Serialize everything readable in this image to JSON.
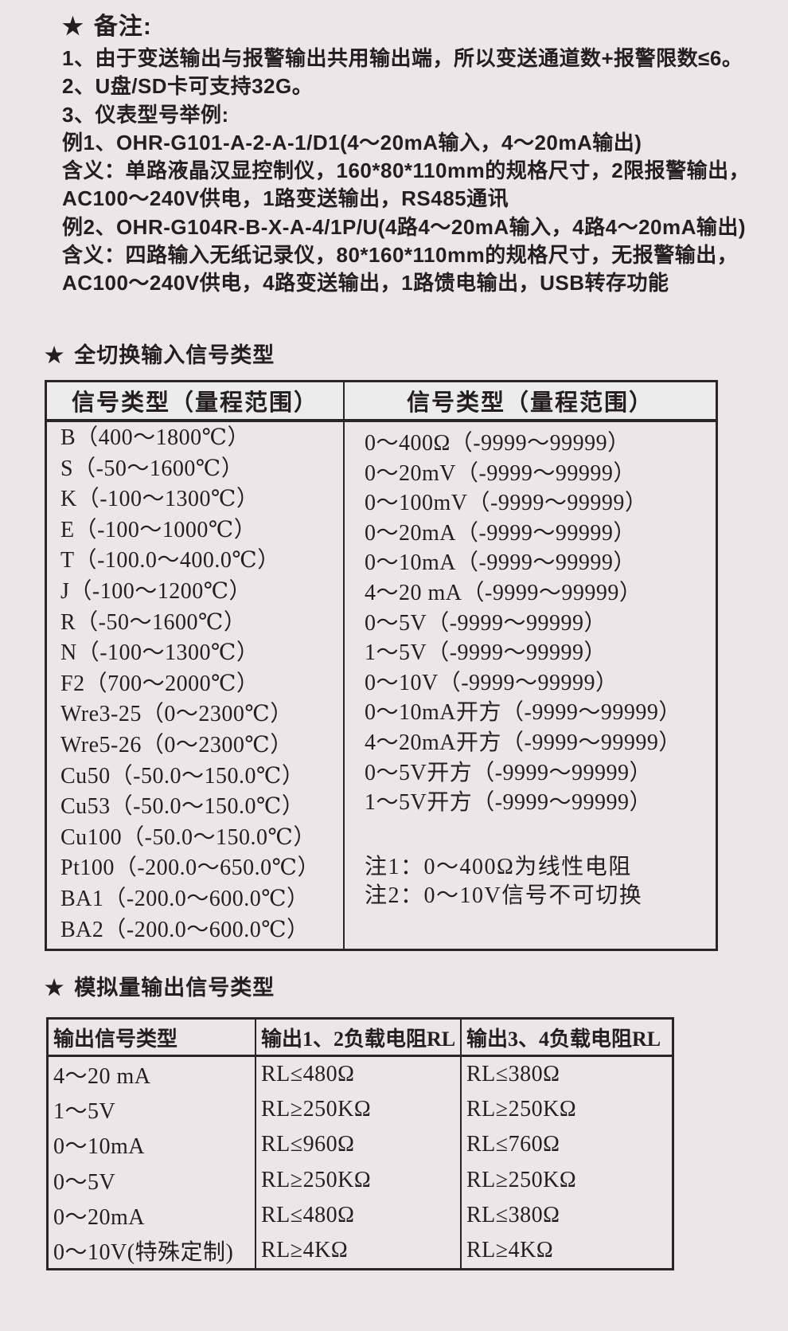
{
  "page": {
    "background_color": "#e9e7e8",
    "text_color": "#231f20",
    "border_color": "#2a2526"
  },
  "remarks": {
    "star": "★",
    "title": "备注:",
    "lines": [
      "1、由于变送输出与报警输出共用输出端，所以变送通道数+报警限数≤6。",
      "2、U盘/SD卡可支持32G。",
      "3、仪表型号举例:",
      "例1、OHR-G101-A-2-A-1/D1(4～20mA输入，4～20mA输出)",
      "含义：单路液晶汉显控制仪，160*80*110mm的规格尺寸，2限报警输出，",
      "AC100～240V供电，1路变送输出，RS485通讯",
      "例2、OHR-G104R-B-X-A-4/1P/U(4路4～20mA输入，4路4～20mA输出)",
      "含义：四路输入无纸记录仪，80*160*110mm的规格尺寸，无报警输出，",
      "AC100～240V供电，4路变送输出，1路馈电输出，USB转存功能"
    ]
  },
  "input_section": {
    "star": "★",
    "title": "全切换输入信号类型",
    "table": {
      "headers": [
        "信号类型（量程范围）",
        "信号类型（量程范围）"
      ],
      "left_rows": [
        "B（400～1800℃）",
        "S（-50～1600℃）",
        "K（-100～1300℃）",
        "E（-100～1000℃）",
        "T（-100.0～400.0℃）",
        "J（-100～1200℃）",
        "R（-50～1600℃）",
        "N（-100～1300℃）",
        "F2（700～2000℃）",
        "Wre3-25（0～2300℃）",
        "Wre5-26（0～2300℃）",
        "Cu50（-50.0～150.0℃）",
        "Cu53（-50.0～150.0℃）",
        "Cu100（-50.0～150.0℃）",
        "Pt100（-200.0～650.0℃）",
        "BA1（-200.0～600.0℃）",
        "BA2（-200.0～600.0℃）"
      ],
      "right_rows": [
        "0～400Ω（-9999～99999）",
        "0～20mV（-9999～99999）",
        "0～100mV（-9999～99999）",
        "0～20mA（-9999～99999）",
        "0～10mA（-9999～99999）",
        "4～20 mA（-9999～99999）",
        "0～5V（-9999～99999）",
        "1～5V（-9999～99999）",
        "0～10V（-9999～99999）",
        "0～10mA开方（-9999～99999）",
        "4～20mA开方（-9999～99999）",
        "0～5V开方（-9999～99999）",
        "1～5V开方（-9999～99999）"
      ],
      "notes": [
        "注1：0～400Ω为线性电阻",
        "注2：0～10V信号不可切换"
      ]
    }
  },
  "output_section": {
    "star": "★",
    "title": "模拟量输出信号类型",
    "table": {
      "headers": [
        "输出信号类型",
        "输出1、2负载电阻RL",
        "输出3、4负载电阻RL"
      ],
      "rows": [
        [
          "4～20 mA",
          "RL≤480Ω",
          "RL≤380Ω"
        ],
        [
          "1～5V",
          "RL≥250KΩ",
          "RL≥250KΩ"
        ],
        [
          "0～10mA",
          "RL≤960Ω",
          "RL≤760Ω"
        ],
        [
          "0～5V",
          "RL≥250KΩ",
          "RL≥250KΩ"
        ],
        [
          "0～20mA",
          "RL≤480Ω",
          "RL≤380Ω"
        ],
        [
          "0～10V(特殊定制)",
          "RL≥4KΩ",
          "RL≥4KΩ"
        ]
      ]
    }
  }
}
